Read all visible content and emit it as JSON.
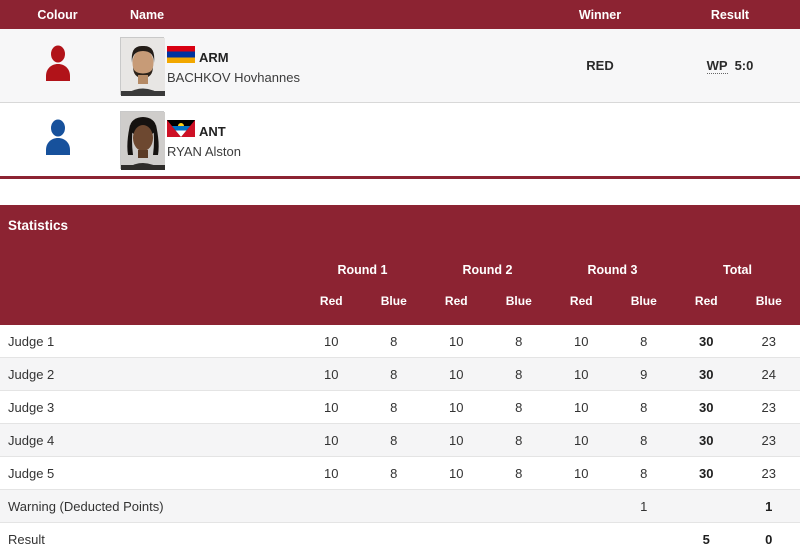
{
  "colors": {
    "header_maroon": "#8c2332",
    "red_corner": "#b11319",
    "blue_corner": "#17519c",
    "alt_row": "#f5f5f6"
  },
  "bout_table": {
    "headers": {
      "colour": "Colour",
      "name": "Name",
      "winner": "Winner",
      "result": "Result"
    },
    "rows": [
      {
        "corner": "red",
        "noc": "ARM",
        "boxer_name": "BACHKOV Hovhannes",
        "winner": "RED",
        "result_abbr": "WP",
        "result_score": "5:0"
      },
      {
        "corner": "blue",
        "noc": "ANT",
        "boxer_name": "RYAN Alston",
        "winner": "",
        "result_abbr": "",
        "result_score": ""
      }
    ]
  },
  "statistics": {
    "title": "Statistics",
    "round_headers": [
      "Round 1",
      "Round 2",
      "Round 3",
      "Total"
    ],
    "sub_headers": [
      "Red",
      "Blue"
    ],
    "rows": [
      {
        "label": "Judge 1",
        "values": [
          "10",
          "8",
          "10",
          "8",
          "10",
          "8",
          "30",
          "23"
        ],
        "bold": [
          6
        ]
      },
      {
        "label": "Judge 2",
        "values": [
          "10",
          "8",
          "10",
          "8",
          "10",
          "9",
          "30",
          "24"
        ],
        "bold": [
          6
        ]
      },
      {
        "label": "Judge 3",
        "values": [
          "10",
          "8",
          "10",
          "8",
          "10",
          "8",
          "30",
          "23"
        ],
        "bold": [
          6
        ]
      },
      {
        "label": "Judge 4",
        "values": [
          "10",
          "8",
          "10",
          "8",
          "10",
          "8",
          "30",
          "23"
        ],
        "bold": [
          6
        ]
      },
      {
        "label": "Judge 5",
        "values": [
          "10",
          "8",
          "10",
          "8",
          "10",
          "8",
          "30",
          "23"
        ],
        "bold": [
          6
        ]
      },
      {
        "label": "Warning (Deducted Points)",
        "values": [
          "",
          "",
          "",
          "",
          "",
          "1",
          "",
          "1"
        ],
        "bold": [
          7
        ]
      },
      {
        "label": "Result",
        "values": [
          "",
          "",
          "",
          "",
          "",
          "",
          "5",
          "0"
        ],
        "bold": [
          6,
          7
        ]
      }
    ]
  }
}
